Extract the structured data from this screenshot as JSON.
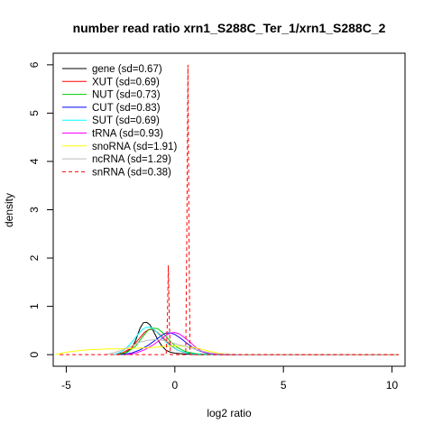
{
  "chart_data": {
    "type": "line",
    "title": "number read ratio xrn1_S288C_Ter_1/xrn1_S288C_2",
    "xlabel": "log2 ratio",
    "ylabel": "density",
    "xlim": [
      -5.6,
      10.6
    ],
    "ylim": [
      -0.24,
      6.24
    ],
    "xticks": [
      -5,
      0,
      5,
      10
    ],
    "yticks": [
      0,
      1,
      2,
      3,
      4,
      5,
      6
    ],
    "legend_position": "top-left",
    "series": [
      {
        "name": "gene (sd=0.67)",
        "color": "#000000",
        "dash": "solid",
        "x": [
          -2.6,
          -2.3,
          -2.0,
          -1.8,
          -1.6,
          -1.45,
          -1.3,
          -1.15,
          -1.0,
          -0.8,
          -0.6,
          -0.4,
          -0.2,
          0.0,
          0.3,
          0.6,
          1.0,
          1.5,
          2.0,
          3.0,
          5.0,
          10.3
        ],
        "y": [
          0.0,
          0.03,
          0.12,
          0.3,
          0.55,
          0.66,
          0.67,
          0.62,
          0.5,
          0.32,
          0.18,
          0.09,
          0.05,
          0.03,
          0.02,
          0.01,
          0.0,
          0.0,
          0.0,
          0.0,
          0.0,
          0.0
        ]
      },
      {
        "name": "XUT (sd=0.69)",
        "color": "#ff0000",
        "dash": "solid",
        "x": [
          -2.8,
          -2.4,
          -2.0,
          -1.7,
          -1.4,
          -1.2,
          -1.0,
          -0.8,
          -0.5,
          -0.2,
          0.1,
          0.4,
          0.8,
          1.2,
          1.8,
          3.0,
          10.3
        ],
        "y": [
          0.0,
          0.04,
          0.14,
          0.3,
          0.46,
          0.52,
          0.52,
          0.46,
          0.33,
          0.2,
          0.1,
          0.05,
          0.02,
          0.01,
          0.0,
          0.0,
          0.0
        ]
      },
      {
        "name": "NUT (sd=0.73)",
        "color": "#00cd00",
        "dash": "solid",
        "x": [
          -2.6,
          -2.2,
          -1.8,
          -1.5,
          -1.25,
          -1.0,
          -0.8,
          -0.6,
          -0.4,
          -0.2,
          0.1,
          0.5,
          1.0,
          1.5,
          2.0,
          3.0,
          10.3
        ],
        "y": [
          0.0,
          0.05,
          0.18,
          0.36,
          0.5,
          0.55,
          0.54,
          0.47,
          0.38,
          0.27,
          0.15,
          0.06,
          0.02,
          0.01,
          0.0,
          0.0,
          0.0
        ]
      },
      {
        "name": "CUT (sd=0.83)",
        "color": "#0000ff",
        "dash": "solid",
        "x": [
          -2.5,
          -2.0,
          -1.6,
          -1.2,
          -0.9,
          -0.6,
          -0.4,
          -0.2,
          0.0,
          0.3,
          0.6,
          1.0,
          1.4,
          1.9,
          2.5,
          10.3
        ],
        "y": [
          0.0,
          0.03,
          0.1,
          0.2,
          0.3,
          0.4,
          0.45,
          0.45,
          0.42,
          0.33,
          0.22,
          0.1,
          0.04,
          0.01,
          0.0,
          0.0
        ]
      },
      {
        "name": "SUT (sd=0.69)",
        "color": "#00ffff",
        "dash": "solid",
        "x": [
          -2.8,
          -2.5,
          -2.2,
          -1.9,
          -1.7,
          -1.5,
          -1.3,
          -1.1,
          -0.9,
          -0.7,
          -0.5,
          -0.2,
          0.2,
          0.6,
          1.0,
          1.5,
          2.0,
          3.0,
          10.3
        ],
        "y": [
          0.0,
          0.05,
          0.15,
          0.3,
          0.42,
          0.52,
          0.57,
          0.56,
          0.5,
          0.4,
          0.3,
          0.18,
          0.08,
          0.03,
          0.01,
          0.0,
          0.0,
          0.0,
          0.0
        ]
      },
      {
        "name": "tRNA (sd=0.93)",
        "color": "#ff00ff",
        "dash": "solid",
        "x": [
          -2.2,
          -1.8,
          -1.4,
          -1.0,
          -0.7,
          -0.4,
          -0.2,
          0.0,
          0.2,
          0.4,
          0.7,
          1.0,
          1.3,
          1.7,
          2.2,
          3.0,
          10.3
        ],
        "y": [
          0.0,
          0.03,
          0.1,
          0.2,
          0.3,
          0.4,
          0.45,
          0.46,
          0.43,
          0.37,
          0.26,
          0.14,
          0.06,
          0.02,
          0.0,
          0.0,
          0.0
        ]
      },
      {
        "name": "snoRNA (sd=1.91)",
        "color": "#ffff00",
        "dash": "solid",
        "x": [
          -5.5,
          -5.0,
          -4.5,
          -4.0,
          -3.5,
          -3.0,
          -2.5,
          -2.0,
          -1.5,
          -1.0,
          -0.5,
          0.0,
          0.5,
          1.0,
          1.5,
          2.0,
          2.5,
          3.0,
          4.0,
          10.3
        ],
        "y": [
          0.0,
          0.05,
          0.08,
          0.1,
          0.11,
          0.12,
          0.12,
          0.13,
          0.14,
          0.15,
          0.17,
          0.18,
          0.17,
          0.14,
          0.08,
          0.03,
          0.01,
          0.0,
          0.0,
          0.0
        ]
      },
      {
        "name": "ncRNA (sd=1.29)",
        "color": "#bebebe",
        "dash": "solid",
        "x": [
          -3.2,
          -2.8,
          -2.4,
          -2.0,
          -1.6,
          -1.2,
          -0.9,
          -0.6,
          -0.3,
          0.0,
          0.4,
          0.8,
          1.2,
          1.6,
          2.0,
          2.5,
          3.0,
          10.3
        ],
        "y": [
          0.0,
          0.04,
          0.1,
          0.18,
          0.26,
          0.3,
          0.31,
          0.3,
          0.27,
          0.23,
          0.18,
          0.13,
          0.08,
          0.04,
          0.02,
          0.01,
          0.0,
          0.0
        ]
      },
      {
        "name": "snRNA (sd=0.38)",
        "color": "#ff0000",
        "dash": "dashed",
        "x": [
          -5.3,
          -0.4,
          -0.35,
          -0.3,
          -0.25,
          -0.2,
          0.5,
          0.55,
          0.6,
          0.65,
          0.7,
          10.3
        ],
        "y": [
          0.0,
          0.0,
          0.6,
          1.85,
          0.6,
          0.0,
          0.0,
          2.5,
          6.0,
          2.5,
          0.0,
          0.0
        ]
      }
    ]
  }
}
